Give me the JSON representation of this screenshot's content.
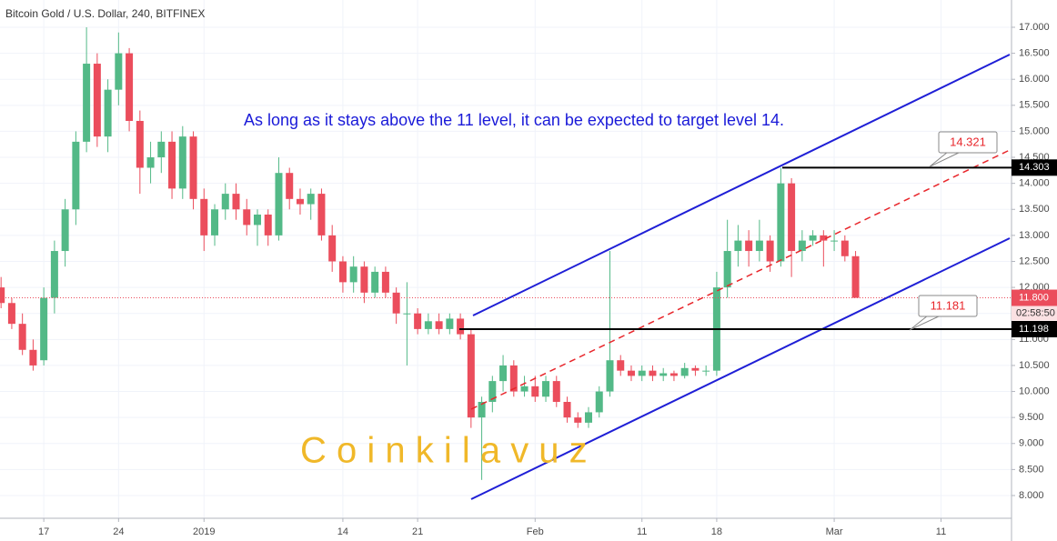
{
  "chart_data": {
    "type": "candlestick",
    "title": "Bitcoin Gold / U.S. Dollar, 240, BITFINEX",
    "annotation": "As long as it stays above the 11 level, it can be expected to target level 14.",
    "watermark": "C o i n k i l a v u z",
    "countdown": "02:58:50",
    "up_color": "#53b987",
    "down_color": "#eb4d5c",
    "grid": true,
    "ylim": [
      7.563,
      17.524
    ],
    "xlim": [
      -4.1,
      90.6
    ],
    "yticks": [
      {
        "value": 8,
        "label": "8.000"
      },
      {
        "value": 8.5,
        "label": "8.500"
      },
      {
        "value": 9,
        "label": "9.000"
      },
      {
        "value": 9.5,
        "label": "9.500"
      },
      {
        "value": 10,
        "label": "10.000"
      },
      {
        "value": 10.5,
        "label": "10.500"
      },
      {
        "value": 11,
        "label": "11.000"
      },
      {
        "value": 11.5,
        "label": "11.500"
      },
      {
        "value": 12,
        "label": "12.000"
      },
      {
        "value": 12.5,
        "label": "12.500"
      },
      {
        "value": 13,
        "label": "13.000"
      },
      {
        "value": 13.5,
        "label": "13.500"
      },
      {
        "value": 14,
        "label": "14.000"
      },
      {
        "value": 14.5,
        "label": "14.500"
      },
      {
        "value": 15,
        "label": "15.000"
      },
      {
        "value": 15.5,
        "label": "15.500"
      },
      {
        "value": 16,
        "label": "16.000"
      },
      {
        "value": 16.5,
        "label": "16.500"
      },
      {
        "value": 17,
        "label": "17.000"
      }
    ],
    "xticks": [
      {
        "value": 0,
        "label": "17"
      },
      {
        "value": 7,
        "label": "24"
      },
      {
        "value": 15,
        "label": "2019"
      },
      {
        "value": 28,
        "label": "14"
      },
      {
        "value": 35,
        "label": "21"
      },
      {
        "value": 46,
        "label": "Feb"
      },
      {
        "value": 56,
        "label": "11"
      },
      {
        "value": 63,
        "label": "18"
      },
      {
        "value": 74,
        "label": "Mar"
      },
      {
        "value": 84,
        "label": "11"
      }
    ],
    "price_line": {
      "value": 11.8,
      "label": "11.800"
    },
    "levels": [
      14.303,
      11.198
    ],
    "callouts": [
      14.321,
      11.181
    ],
    "x": [
      -4,
      -3,
      -2,
      -1,
      0,
      1,
      2,
      3,
      4,
      5,
      6,
      7,
      8,
      9,
      10,
      11,
      12,
      13,
      14,
      15,
      16,
      17,
      18,
      19,
      20,
      21,
      22,
      23,
      24,
      25,
      26,
      27,
      28,
      29,
      30,
      31,
      32,
      33,
      34,
      35,
      36,
      37,
      38,
      39,
      40,
      41,
      42,
      43,
      44,
      45,
      46,
      47,
      48,
      49,
      50,
      51,
      52,
      53,
      54,
      55,
      56,
      57,
      58,
      59,
      60,
      61,
      62,
      63,
      64,
      65,
      66,
      67,
      68,
      69,
      70,
      71,
      72,
      73,
      74,
      75,
      76
    ],
    "open": [
      12.0,
      11.7,
      11.3,
      10.8,
      10.6,
      11.8,
      12.7,
      13.5,
      14.8,
      16.3,
      14.9,
      15.8,
      16.5,
      15.2,
      14.3,
      14.5,
      14.8,
      13.9,
      14.9,
      13.7,
      13.0,
      13.5,
      13.8,
      13.5,
      13.2,
      13.4,
      13.0,
      14.2,
      13.7,
      13.6,
      13.8,
      13.0,
      12.5,
      12.1,
      12.4,
      11.9,
      12.3,
      11.9,
      11.5,
      11.5,
      11.2,
      11.35,
      11.2,
      11.4,
      11.1,
      9.5,
      9.8,
      10.2,
      10.5,
      10.0,
      10.1,
      9.9,
      10.2,
      9.8,
      9.5,
      9.4,
      9.6,
      10.0,
      10.6,
      10.4,
      10.3,
      10.4,
      10.3,
      10.35,
      10.3,
      10.45,
      10.4,
      10.4,
      12.0,
      12.7,
      12.9,
      12.7,
      12.9,
      12.5,
      14.0,
      12.7,
      12.9,
      13.0,
      12.9,
      12.9,
      12.6
    ],
    "high": [
      12.2,
      11.8,
      11.5,
      11.0,
      12.0,
      12.9,
      13.7,
      15.0,
      17.0,
      16.5,
      16.0,
      16.9,
      16.6,
      15.4,
      14.8,
      15.0,
      15.0,
      15.1,
      15.0,
      13.9,
      13.6,
      14.0,
      14.0,
      13.7,
      13.5,
      13.5,
      14.5,
      14.3,
      13.9,
      13.9,
      13.9,
      13.2,
      12.6,
      12.6,
      12.5,
      12.4,
      12.4,
      12.0,
      12.1,
      11.6,
      11.5,
      11.5,
      11.5,
      11.5,
      11.2,
      9.9,
      10.3,
      10.7,
      10.6,
      10.3,
      10.3,
      10.3,
      10.3,
      9.9,
      9.6,
      9.7,
      10.1,
      12.7,
      10.7,
      10.5,
      10.5,
      10.5,
      10.45,
      10.4,
      10.55,
      10.5,
      10.5,
      12.3,
      13.3,
      13.2,
      13.1,
      13.3,
      13.0,
      14.3,
      14.1,
      13.1,
      13.1,
      13.1,
      13.1,
      13.0,
      12.7
    ],
    "low": [
      11.6,
      11.2,
      10.7,
      10.4,
      10.5,
      11.5,
      12.4,
      13.2,
      14.6,
      14.7,
      14.6,
      15.5,
      15.0,
      13.8,
      14.0,
      14.2,
      13.7,
      13.7,
      13.5,
      12.7,
      12.8,
      13.3,
      13.3,
      13.0,
      12.8,
      12.8,
      12.9,
      13.5,
      13.4,
      13.3,
      12.9,
      12.3,
      11.9,
      11.9,
      11.7,
      11.8,
      11.8,
      11.3,
      10.5,
      11.1,
      11.1,
      11.1,
      11.1,
      11.0,
      9.3,
      8.3,
      9.6,
      10.0,
      9.9,
      9.9,
      9.8,
      9.8,
      9.7,
      9.4,
      9.3,
      9.3,
      9.5,
      9.9,
      10.3,
      10.2,
      10.2,
      10.2,
      10.2,
      10.2,
      10.25,
      10.3,
      10.3,
      10.3,
      11.8,
      12.4,
      12.4,
      12.5,
      12.3,
      12.4,
      12.2,
      12.5,
      12.8,
      12.4,
      12.7,
      12.5,
      11.8
    ],
    "close": [
      11.7,
      11.3,
      10.8,
      10.5,
      11.8,
      12.7,
      13.5,
      14.8,
      16.3,
      14.9,
      15.8,
      16.5,
      15.2,
      14.3,
      14.5,
      14.8,
      13.9,
      14.9,
      13.7,
      13.0,
      13.5,
      13.8,
      13.5,
      13.2,
      13.4,
      13.0,
      14.2,
      13.7,
      13.6,
      13.8,
      13.0,
      12.5,
      12.1,
      12.4,
      11.9,
      12.3,
      11.9,
      11.5,
      11.5,
      11.2,
      11.35,
      11.2,
      11.4,
      11.1,
      9.5,
      9.8,
      10.2,
      10.5,
      10.0,
      10.1,
      9.9,
      10.2,
      9.8,
      9.5,
      9.4,
      9.6,
      10.0,
      10.6,
      10.4,
      10.3,
      10.4,
      10.3,
      10.35,
      10.3,
      10.45,
      10.4,
      10.4,
      12.0,
      12.7,
      12.9,
      12.7,
      12.9,
      12.5,
      14.0,
      12.7,
      12.9,
      13.0,
      12.9,
      12.9,
      12.6,
      11.8
    ]
  }
}
